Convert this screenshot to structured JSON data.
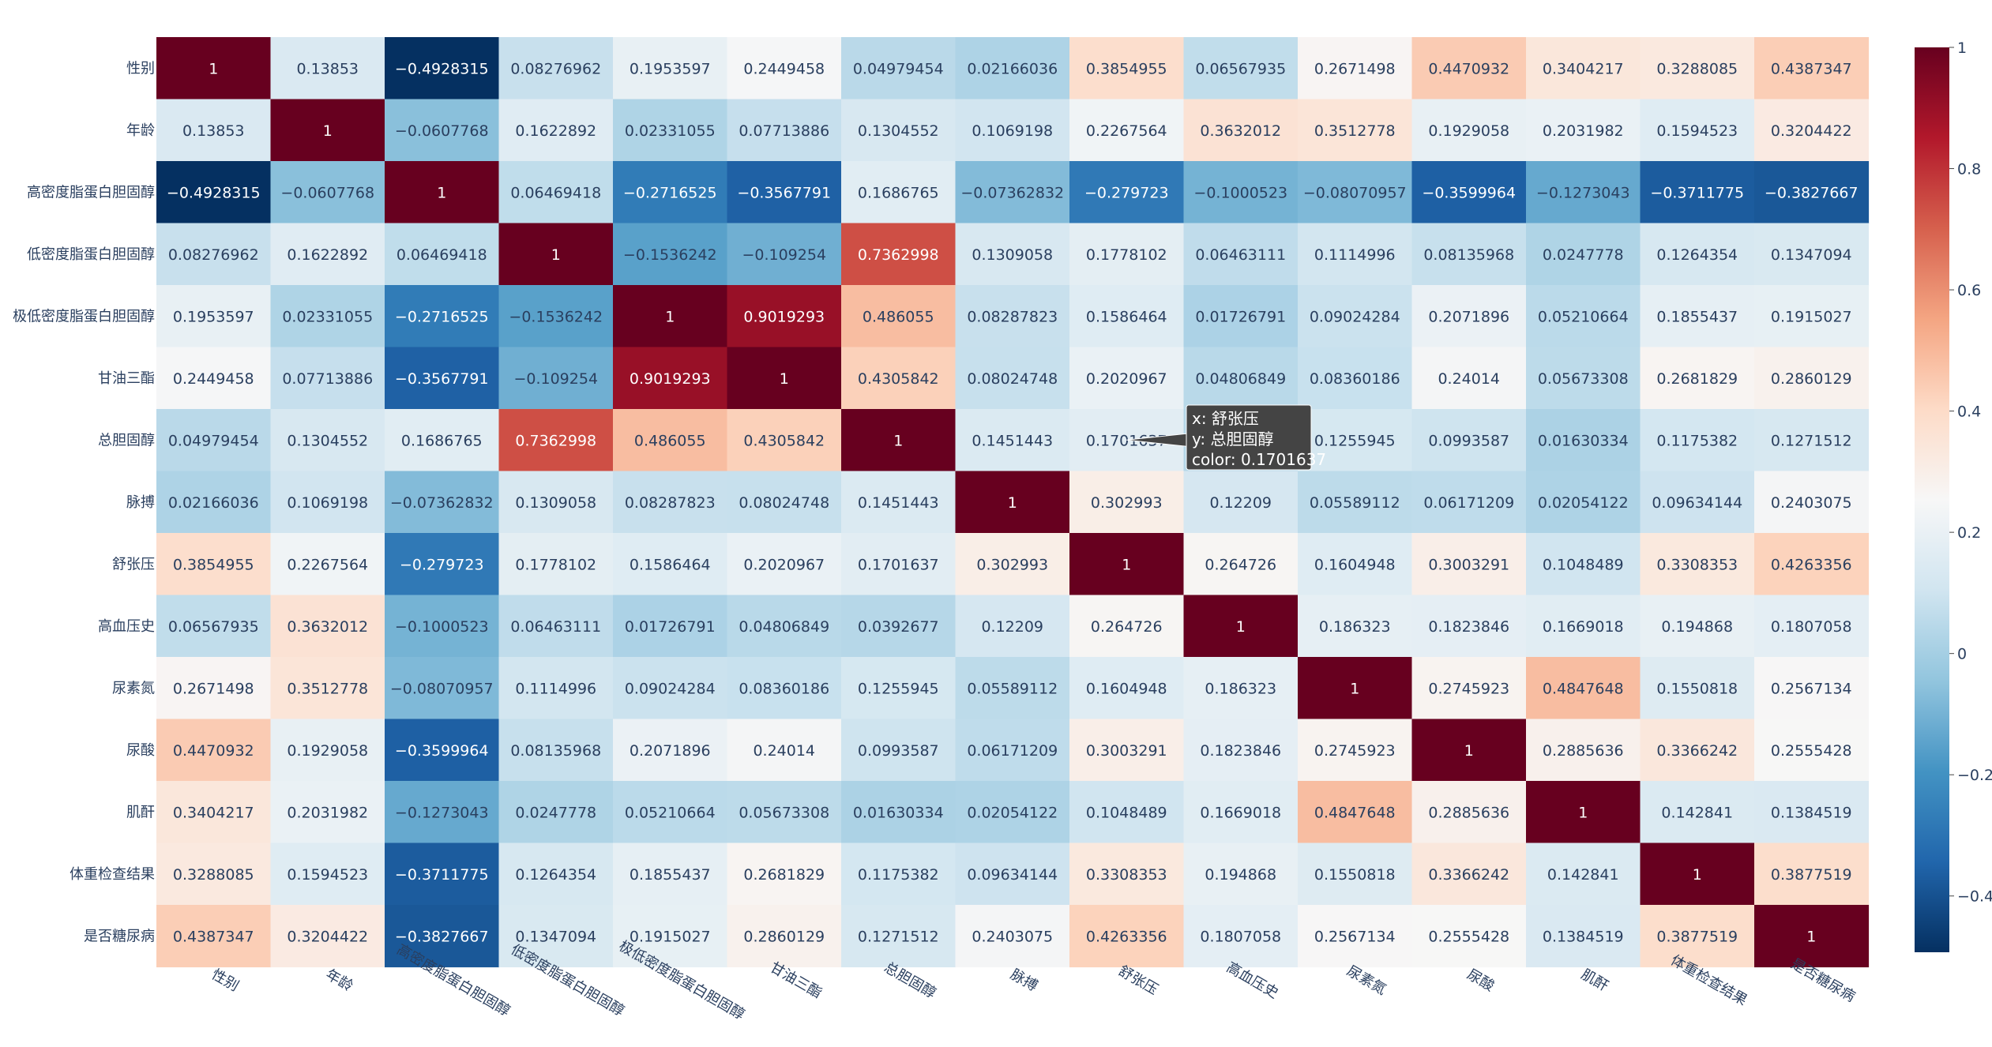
{
  "chart_data": {
    "type": "heatmap",
    "labels": [
      "性别",
      "年龄",
      "高密度脂蛋白胆固醇",
      "低密度脂蛋白胆固醇",
      "极低密度脂蛋白胆固醇",
      "甘油三酯",
      "总胆固醇",
      "脉搏",
      "舒张压",
      "高血压史",
      "尿素氮",
      "尿酸",
      "肌酐",
      "体重检查结果",
      "是否糖尿病"
    ],
    "values": [
      [
        "1",
        "0.13853",
        "−0.4928315",
        "0.08276962",
        "0.1953597",
        "0.2449458",
        "0.04979454",
        "0.02166036",
        "0.3854955",
        "0.06567935",
        "0.2671498",
        "0.4470932",
        "0.3404217",
        "0.3288085",
        "0.4387347"
      ],
      [
        "0.13853",
        "1",
        "−0.0607768",
        "0.1622892",
        "0.02331055",
        "0.07713886",
        "0.1304552",
        "0.1069198",
        "0.2267564",
        "0.3632012",
        "0.3512778",
        "0.1929058",
        "0.2031982",
        "0.1594523",
        "0.3204422"
      ],
      [
        "−0.4928315",
        "−0.0607768",
        "1",
        "0.06469418",
        "−0.2716525",
        "−0.3567791",
        "0.1686765",
        "−0.07362832",
        "−0.279723",
        "−0.1000523",
        "−0.08070957",
        "−0.3599964",
        "−0.1273043",
        "−0.3711775",
        "−0.3827667"
      ],
      [
        "0.08276962",
        "0.1622892",
        "0.06469418",
        "1",
        "−0.1536242",
        "−0.109254",
        "0.7362998",
        "0.1309058",
        "0.1778102",
        "0.06463111",
        "0.1114996",
        "0.08135968",
        "0.0247778",
        "0.1264354",
        "0.1347094"
      ],
      [
        "0.1953597",
        "0.02331055",
        "−0.2716525",
        "−0.1536242",
        "1",
        "0.9019293",
        "0.486055",
        "0.08287823",
        "0.1586464",
        "0.01726791",
        "0.09024284",
        "0.2071896",
        "0.05210664",
        "0.1855437",
        "0.1915027"
      ],
      [
        "0.2449458",
        "0.07713886",
        "−0.3567791",
        "−0.109254",
        "0.9019293",
        "1",
        "0.4305842",
        "0.08024748",
        "0.2020967",
        "0.04806849",
        "0.08360186",
        "0.24014",
        "0.05673308",
        "0.2681829",
        "0.2860129"
      ],
      [
        "0.04979454",
        "0.1304552",
        "0.1686765",
        "0.7362998",
        "0.486055",
        "0.4305842",
        "1",
        "0.1451443",
        "0.1701637",
        "0.0392677",
        "0.1255945",
        "0.0993587",
        "0.01630334",
        "0.1175382",
        "0.1271512"
      ],
      [
        "0.02166036",
        "0.1069198",
        "−0.07362832",
        "0.1309058",
        "0.08287823",
        "0.08024748",
        "0.1451443",
        "1",
        "0.302993",
        "0.12209",
        "0.05589112",
        "0.06171209",
        "0.02054122",
        "0.09634144",
        "0.2403075"
      ],
      [
        "0.3854955",
        "0.2267564",
        "−0.279723",
        "0.1778102",
        "0.1586464",
        "0.2020967",
        "0.1701637",
        "0.302993",
        "1",
        "0.264726",
        "0.1604948",
        "0.3003291",
        "0.1048489",
        "0.3308353",
        "0.4263356"
      ],
      [
        "0.06567935",
        "0.3632012",
        "−0.1000523",
        "0.06463111",
        "0.01726791",
        "0.04806849",
        "0.0392677",
        "0.12209",
        "0.264726",
        "1",
        "0.186323",
        "0.1823846",
        "0.1669018",
        "0.194868",
        "0.1807058"
      ],
      [
        "0.2671498",
        "0.3512778",
        "−0.08070957",
        "0.1114996",
        "0.09024284",
        "0.08360186",
        "0.1255945",
        "0.05589112",
        "0.1604948",
        "0.186323",
        "1",
        "0.2745923",
        "0.4847648",
        "0.1550818",
        "0.2567134"
      ],
      [
        "0.4470932",
        "0.1929058",
        "−0.3599964",
        "0.08135968",
        "0.2071896",
        "0.24014",
        "0.0993587",
        "0.06171209",
        "0.3003291",
        "0.1823846",
        "0.2745923",
        "1",
        "0.2885636",
        "0.3366242",
        "0.2555428"
      ],
      [
        "0.3404217",
        "0.2031982",
        "−0.1273043",
        "0.0247778",
        "0.05210664",
        "0.05673308",
        "0.01630334",
        "0.02054122",
        "0.1048489",
        "0.1669018",
        "0.4847648",
        "0.2885636",
        "1",
        "0.142841",
        "0.1384519"
      ],
      [
        "0.3288085",
        "0.1594523",
        "−0.3711775",
        "0.1264354",
        "0.1855437",
        "0.2681829",
        "0.1175382",
        "0.09634144",
        "0.3308353",
        "0.194868",
        "0.1550818",
        "0.3366242",
        "0.142841",
        "1",
        "0.3877519"
      ],
      [
        "0.4387347",
        "0.3204422",
        "−0.3827667",
        "0.1347094",
        "0.1915027",
        "0.2860129",
        "0.1271512",
        "0.2403075",
        "0.4263356",
        "0.1807058",
        "0.2567134",
        "0.2555428",
        "0.1384519",
        "0.3877519",
        "1"
      ]
    ],
    "zlim": [
      -0.4928315,
      1
    ],
    "colorscale": "RdBu",
    "colorbar_ticks": [
      "1",
      "0.8",
      "0.6",
      "0.4",
      "0.2",
      "0",
      "−0.2",
      "−0.4"
    ],
    "colorbar_tick_values": [
      1,
      0.8,
      0.6,
      0.4,
      0.2,
      0,
      -0.2,
      -0.4
    ],
    "hover": {
      "x_label": "x: 舒张压",
      "y_label": "y: 总胆固醇",
      "color_label": "color: 0.1701637",
      "row": 6,
      "col": 8
    }
  }
}
